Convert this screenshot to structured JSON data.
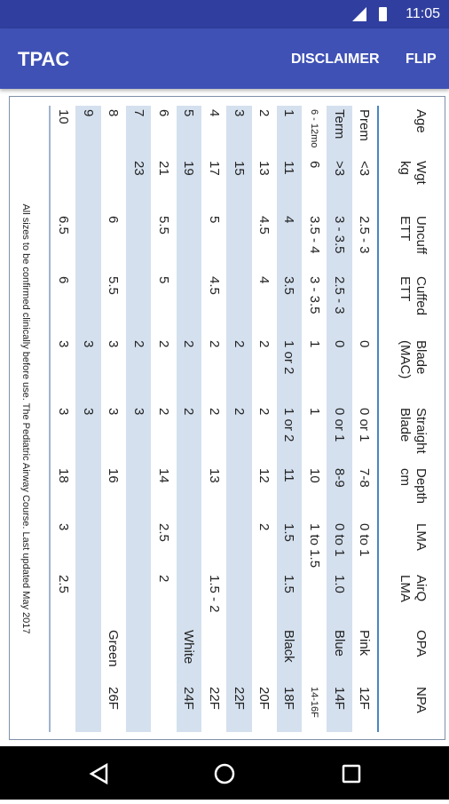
{
  "status": {
    "time": "11:05"
  },
  "appbar": {
    "title": "TPAC",
    "actions": [
      "DISCLAIMER",
      "FLIP"
    ]
  },
  "table": {
    "headers": [
      "Age",
      "Wgt\nkg",
      "Uncuff\nETT",
      "Cuffed\nETT",
      "Blade\n(MAC)",
      "Straight\nBlade",
      "Depth\ncm",
      "LMA",
      "AirQ\nLMA",
      "OPA",
      "NPA"
    ],
    "rows": [
      [
        "Prem",
        "<3",
        "2.5 - 3",
        null,
        "0",
        "0 or 1",
        "7-8",
        "0 to 1",
        null,
        "Pink",
        "12F"
      ],
      [
        "Term",
        ">3",
        "3 - 3.5",
        "2.5 - 3",
        "0",
        "0 or 1",
        "8-9",
        "0 to 1",
        "1.0",
        "Blue",
        "14F"
      ],
      [
        "6 - 12mo",
        "6",
        "3.5 - 4",
        "3 - 3.5",
        "1",
        "1",
        "10",
        "1 to 1.5",
        null,
        null,
        "14-16F"
      ],
      [
        "1",
        "11",
        "4",
        "3.5",
        "1 or 2",
        "1 or 2",
        "11",
        "1.5",
        "1.5",
        "Black",
        "18F"
      ],
      [
        "2",
        "13",
        "4.5",
        "4",
        "2",
        "2",
        "12",
        "2",
        null,
        null,
        "20F"
      ],
      [
        "3",
        "15",
        null,
        null,
        "2",
        "2",
        null,
        null,
        null,
        null,
        "22F"
      ],
      [
        "4",
        "17",
        "5",
        "4.5",
        "2",
        "2",
        "13",
        null,
        "1.5 - 2",
        null,
        "22F"
      ],
      [
        "5",
        "19",
        null,
        null,
        "2",
        "2",
        null,
        null,
        null,
        "White",
        "24F"
      ],
      [
        "6",
        "21",
        "5.5",
        "5",
        "2",
        "2",
        "14",
        "2.5",
        "2",
        null,
        null
      ],
      [
        "7",
        "23",
        null,
        null,
        "2",
        "3",
        null,
        null,
        null,
        null,
        null
      ],
      [
        "8",
        null,
        "6",
        "5.5",
        "3",
        "3",
        "16",
        null,
        null,
        "Green",
        "26F"
      ],
      [
        "9",
        null,
        null,
        null,
        "3",
        "3",
        null,
        null,
        null,
        null,
        null
      ],
      [
        "10",
        null,
        "6.5",
        "6",
        "3",
        "3",
        "18",
        "3",
        "2.5",
        null,
        null
      ]
    ],
    "footer": "All sizes to be confirmed clinically before use. The Pediatric Airway Course. Last updated May 2017"
  }
}
